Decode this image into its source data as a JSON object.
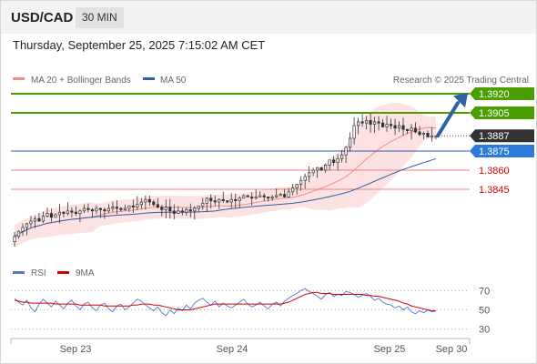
{
  "header": {
    "symbol": "USD/CAD",
    "timeframe": "30 MIN"
  },
  "timestamp": "Thursday, September 25, 2025 7:15:02 AM CET",
  "credit": "Research © 2025 Trading Central",
  "colors": {
    "green": "#4a9e00",
    "blue": "#2d7ad8",
    "dark": "#333333",
    "red": "#d60000",
    "bb": "#f28c8c",
    "ma50": "#2e5fa8",
    "rsi": "#5577cc",
    "rsima": "#d60000",
    "arrow": "#2e5fa8"
  },
  "chart_data": [
    {
      "type": "candlestick",
      "legend": [
        {
          "name": "MA 20 + Bollinger Bands",
          "color": "#f28c8c"
        },
        {
          "name": "MA 50",
          "color": "#2e5fa8"
        }
      ],
      "ylim": [
        1.38,
        1.3925
      ],
      "x_ticks": [
        "Sep 23",
        "Sep 24",
        "Sep 25",
        "Sep 30"
      ],
      "levels": [
        {
          "value": 1.392,
          "label": "1.3920",
          "kind": "resistance",
          "style": "green-tag"
        },
        {
          "value": 1.3905,
          "label": "1.3905",
          "kind": "resistance",
          "style": "green-tag"
        },
        {
          "value": 1.3887,
          "label": "1.3887",
          "kind": "last-price",
          "style": "dark-tag"
        },
        {
          "value": 1.3875,
          "label": "1.3875",
          "kind": "pivot",
          "style": "blue-tag"
        },
        {
          "value": 1.386,
          "label": "1.3860",
          "kind": "support",
          "style": "red-text"
        },
        {
          "value": 1.3845,
          "label": "1.3845",
          "kind": "support",
          "style": "red-text"
        }
      ],
      "close": [
        1.3808,
        1.3812,
        1.3815,
        1.3818,
        1.382,
        1.3822,
        1.382,
        1.3824,
        1.3826,
        1.3823,
        1.3825,
        1.3827,
        1.3826,
        1.3828,
        1.3827,
        1.3826,
        1.3828,
        1.383,
        1.3829,
        1.3828,
        1.383,
        1.3829,
        1.3828,
        1.383,
        1.3831,
        1.383,
        1.3829,
        1.383,
        1.3832,
        1.3831,
        1.3833,
        1.3835,
        1.3837,
        1.3835,
        1.3833,
        1.3831,
        1.3829,
        1.3831,
        1.3828,
        1.3826,
        1.3828,
        1.3827,
        1.3829,
        1.3828,
        1.383,
        1.3832,
        1.3834,
        1.3838,
        1.3836,
        1.3835,
        1.3837,
        1.3836,
        1.3835,
        1.3837,
        1.3836,
        1.3838,
        1.384,
        1.3839,
        1.3838,
        1.3839,
        1.384,
        1.3839,
        1.3838,
        1.3839,
        1.384,
        1.3841,
        1.3839,
        1.3843,
        1.3846,
        1.3849,
        1.3852,
        1.3855,
        1.3858,
        1.386,
        1.3862,
        1.386,
        1.3864,
        1.3868,
        1.3866,
        1.3869,
        1.3872,
        1.3878,
        1.3885,
        1.3895,
        1.3898,
        1.3897,
        1.3899,
        1.3896,
        1.3898,
        1.3897,
        1.3894,
        1.3896,
        1.3895,
        1.3893,
        1.3895,
        1.3892,
        1.3891,
        1.3893,
        1.389,
        1.3888,
        1.3889,
        1.3886,
        1.3887,
        1.3887
      ],
      "rsi": {
        "label": "RSI",
        "ma_label": "9MA",
        "ylim": [
          25,
          75
        ],
        "ticks": [
          "70",
          "50",
          "30"
        ],
        "values": [
          62,
          58,
          55,
          60,
          52,
          48,
          56,
          61,
          57,
          53,
          59,
          55,
          51,
          57,
          60,
          54,
          50,
          56,
          58,
          52,
          49,
          55,
          57,
          51,
          48,
          54,
          56,
          50,
          53,
          57,
          61,
          59,
          55,
          52,
          49,
          53,
          47,
          44,
          50,
          46,
          52,
          49,
          55,
          51,
          57,
          60,
          62,
          58,
          55,
          59,
          53,
          57,
          54,
          52,
          55,
          58,
          61,
          56,
          53,
          55,
          58,
          54,
          51,
          56,
          58,
          54,
          59,
          62,
          65,
          67,
          70,
          72,
          69,
          67,
          64,
          61,
          66,
          68,
          64,
          66,
          65,
          69,
          68,
          66,
          63,
          65,
          67,
          64,
          60,
          62,
          58,
          56,
          55,
          52,
          54,
          50,
          53,
          48,
          46,
          49,
          47,
          50,
          48,
          49
        ],
        "ma": [
          60,
          59,
          58,
          58,
          57,
          57,
          57,
          57,
          57,
          57,
          56,
          56,
          56,
          56,
          56,
          56,
          55,
          55,
          55,
          55,
          55,
          55,
          54,
          54,
          54,
          54,
          54,
          54,
          54,
          55,
          55,
          56,
          56,
          56,
          55,
          55,
          54,
          53,
          52,
          51,
          50,
          50,
          50,
          50,
          51,
          52,
          53,
          54,
          55,
          56,
          56,
          56,
          56,
          56,
          56,
          56,
          56,
          56,
          56,
          56,
          56,
          56,
          56,
          56,
          56,
          56,
          57,
          58,
          60,
          62,
          64,
          66,
          67,
          68,
          68,
          67,
          67,
          67,
          66,
          66,
          66,
          66,
          66,
          66,
          66,
          66,
          65,
          65,
          64,
          64,
          63,
          62,
          61,
          60,
          59,
          57,
          56,
          54,
          53,
          52,
          51,
          50,
          49,
          49
        ]
      }
    }
  ]
}
